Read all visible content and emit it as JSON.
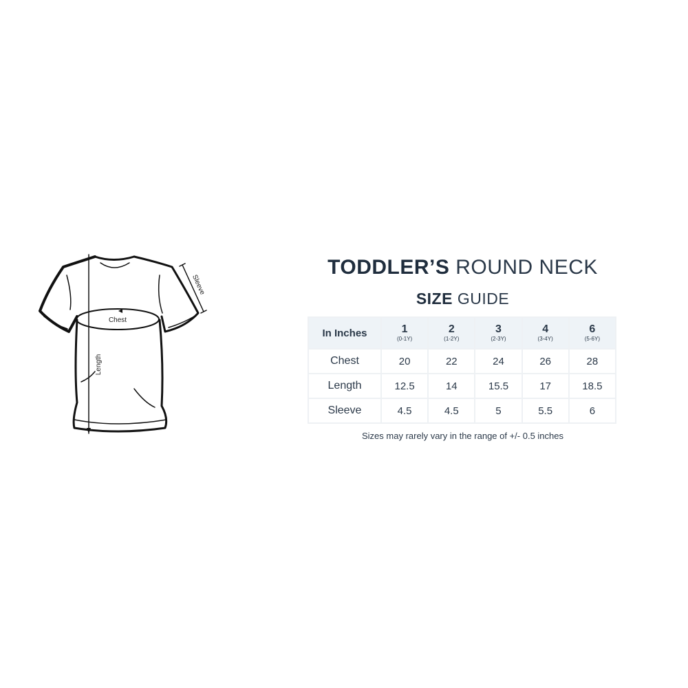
{
  "diagram": {
    "chest_label": "Chest",
    "length_label": "Length",
    "sleeve_label": "Sleeve"
  },
  "title": {
    "bold": "TODDLER’S",
    "light": "ROUND NECK"
  },
  "subtitle": {
    "bold": "SIZE",
    "light": "GUIDE"
  },
  "table": {
    "corner": "In Inches",
    "columns": [
      {
        "size": "1",
        "age": "(0-1Y)"
      },
      {
        "size": "2",
        "age": "(1-2Y)"
      },
      {
        "size": "3",
        "age": "(2-3Y)"
      },
      {
        "size": "4",
        "age": "(3-4Y)"
      },
      {
        "size": "6",
        "age": "(5-6Y)"
      }
    ],
    "rows": [
      {
        "label": "Chest",
        "values": [
          "20",
          "22",
          "24",
          "26",
          "28"
        ]
      },
      {
        "label": "Length",
        "values": [
          "12.5",
          "14",
          "15.5",
          "17",
          "18.5"
        ]
      },
      {
        "label": "Sleeve",
        "values": [
          "4.5",
          "4.5",
          "5",
          "5.5",
          "6"
        ]
      }
    ]
  },
  "note": "Sizes may rarely vary in the range of +/- 0.5 inches",
  "colors": {
    "text": "#1f2d3d",
    "header_bg": "#eef3f7"
  }
}
